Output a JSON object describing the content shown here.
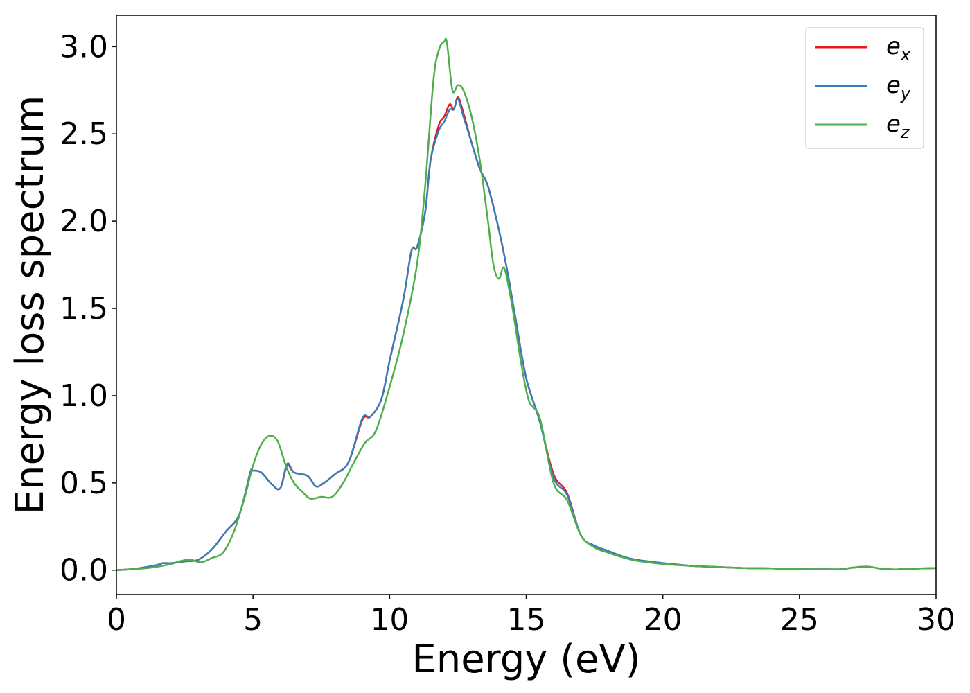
{
  "chart_data": {
    "type": "line",
    "title": "",
    "xlabel": "Energy (eV)",
    "ylabel": "Energy loss spectrum",
    "xlim": [
      0,
      30
    ],
    "ylim": [
      -0.14,
      3.18
    ],
    "xticks": [
      0,
      5,
      10,
      15,
      20,
      25,
      30
    ],
    "xtick_labels": [
      "0",
      "5",
      "10",
      "15",
      "20",
      "25",
      "30"
    ],
    "yticks": [
      0.0,
      0.5,
      1.0,
      1.5,
      2.0,
      2.5,
      3.0
    ],
    "ytick_labels": [
      "0.0",
      "0.5",
      "1.0",
      "1.5",
      "2.0",
      "2.5",
      "3.0"
    ],
    "grid": false,
    "legend_position": "top-right",
    "series": [
      {
        "name": "e_x",
        "label_base": "e",
        "label_sub": "x",
        "color": "#e41a1c",
        "x": [
          0,
          0.5,
          1,
          1.5,
          1.7,
          2,
          2.5,
          3,
          3.5,
          4,
          4.5,
          4.9,
          5,
          5.3,
          5.7,
          6,
          6.25,
          6.5,
          7,
          7.3,
          7.6,
          8,
          8.5,
          9,
          9.3,
          9.7,
          10,
          10.5,
          10.8,
          11,
          11.3,
          11.5,
          11.8,
          12,
          12.2,
          12.35,
          12.5,
          12.7,
          13,
          13.3,
          13.6,
          14,
          14.3,
          14.6,
          15,
          15.5,
          16,
          16.5,
          17,
          17.5,
          18,
          18.5,
          19,
          20,
          21,
          22,
          23,
          24,
          25,
          26,
          26.5,
          27,
          27.5,
          28,
          28.5,
          29,
          30
        ],
        "y": [
          0.0,
          0.005,
          0.015,
          0.03,
          0.04,
          0.04,
          0.05,
          0.06,
          0.12,
          0.22,
          0.32,
          0.56,
          0.57,
          0.56,
          0.49,
          0.47,
          0.6,
          0.56,
          0.54,
          0.48,
          0.5,
          0.55,
          0.62,
          0.86,
          0.88,
          0.98,
          1.2,
          1.55,
          1.83,
          1.85,
          2.05,
          2.35,
          2.55,
          2.6,
          2.67,
          2.64,
          2.71,
          2.62,
          2.45,
          2.3,
          2.2,
          1.95,
          1.72,
          1.45,
          1.1,
          0.85,
          0.55,
          0.44,
          0.2,
          0.14,
          0.11,
          0.08,
          0.06,
          0.04,
          0.025,
          0.018,
          0.012,
          0.01,
          0.006,
          0.005,
          0.005,
          0.015,
          0.02,
          0.008,
          0.004,
          0.008,
          0.012
        ]
      },
      {
        "name": "e_y",
        "label_base": "e",
        "label_sub": "y",
        "color": "#377eb8",
        "x": [
          0,
          0.5,
          1,
          1.5,
          1.7,
          2,
          2.5,
          3,
          3.5,
          4,
          4.5,
          4.9,
          5,
          5.3,
          5.7,
          6,
          6.25,
          6.5,
          7,
          7.3,
          7.6,
          8,
          8.5,
          9,
          9.3,
          9.7,
          10,
          10.5,
          10.8,
          11,
          11.3,
          11.5,
          11.8,
          12,
          12.2,
          12.35,
          12.5,
          12.7,
          13,
          13.3,
          13.6,
          14,
          14.3,
          14.6,
          15,
          15.5,
          16,
          16.5,
          17,
          17.5,
          18,
          18.5,
          19,
          20,
          21,
          22,
          23,
          24,
          25,
          26,
          26.5,
          27,
          27.5,
          28,
          28.5,
          29,
          30
        ],
        "y": [
          0.0,
          0.005,
          0.015,
          0.03,
          0.04,
          0.04,
          0.05,
          0.06,
          0.12,
          0.22,
          0.32,
          0.56,
          0.57,
          0.56,
          0.49,
          0.47,
          0.61,
          0.56,
          0.54,
          0.48,
          0.5,
          0.55,
          0.62,
          0.87,
          0.88,
          0.98,
          1.2,
          1.55,
          1.83,
          1.85,
          2.05,
          2.35,
          2.52,
          2.57,
          2.64,
          2.64,
          2.7,
          2.6,
          2.45,
          2.3,
          2.2,
          1.95,
          1.72,
          1.45,
          1.1,
          0.85,
          0.53,
          0.43,
          0.2,
          0.14,
          0.11,
          0.08,
          0.06,
          0.04,
          0.025,
          0.018,
          0.012,
          0.01,
          0.006,
          0.005,
          0.005,
          0.015,
          0.02,
          0.008,
          0.004,
          0.008,
          0.012
        ]
      },
      {
        "name": "e_z",
        "label_base": "e",
        "label_sub": "z",
        "color": "#4daf4a",
        "x": [
          0,
          0.5,
          1,
          1.5,
          2,
          2.3,
          2.7,
          3.1,
          3.5,
          3.9,
          4.3,
          4.7,
          5,
          5.3,
          5.6,
          5.9,
          6.2,
          6.5,
          6.8,
          7.1,
          7.5,
          7.9,
          8.3,
          8.7,
          9.1,
          9.5,
          10,
          10.5,
          11,
          11.3,
          11.6,
          11.8,
          12.0,
          12.1,
          12.3,
          12.5,
          12.7,
          13,
          13.3,
          13.6,
          13.8,
          14.0,
          14.2,
          14.5,
          14.8,
          15.1,
          15.5,
          16,
          16.5,
          17,
          17.5,
          18,
          18.5,
          19,
          20,
          21,
          22,
          23,
          24,
          25,
          26,
          26.5,
          27,
          27.5,
          28,
          28.5,
          29,
          30
        ],
        "y": [
          0.0,
          0.005,
          0.01,
          0.02,
          0.035,
          0.05,
          0.06,
          0.045,
          0.07,
          0.1,
          0.22,
          0.42,
          0.6,
          0.72,
          0.77,
          0.74,
          0.6,
          0.5,
          0.45,
          0.41,
          0.42,
          0.42,
          0.5,
          0.62,
          0.73,
          0.8,
          1.05,
          1.35,
          1.75,
          2.2,
          2.8,
          2.98,
          3.03,
          3.02,
          2.75,
          2.78,
          2.75,
          2.6,
          2.35,
          2.0,
          1.75,
          1.67,
          1.73,
          1.5,
          1.2,
          0.97,
          0.87,
          0.5,
          0.4,
          0.2,
          0.13,
          0.1,
          0.075,
          0.055,
          0.035,
          0.025,
          0.018,
          0.012,
          0.01,
          0.006,
          0.005,
          0.005,
          0.015,
          0.02,
          0.008,
          0.004,
          0.008,
          0.012
        ]
      }
    ]
  }
}
